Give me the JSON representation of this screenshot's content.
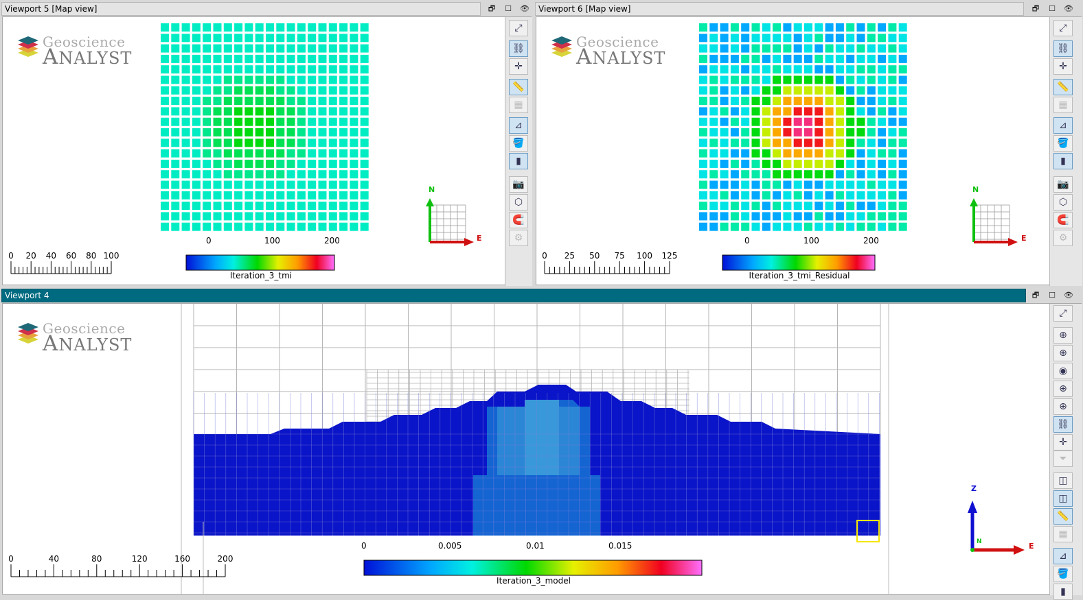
{
  "viewports": {
    "vp5": {
      "title": "Viewport 5 [Map view]"
    },
    "vp6": {
      "title": "Viewport 6 [Map view]"
    },
    "vp4": {
      "title": "Viewport 4"
    }
  },
  "logo": {
    "line1": "Geoscience",
    "line2_big": "A",
    "line2_small": "NALYST"
  },
  "controls": {
    "restore": "🗗",
    "maximize": "☐",
    "hide": "👁"
  },
  "colors": {
    "accent_title": "#006a80",
    "model_dark": "#0a14c8",
    "model_mid": "#1464d2",
    "model_light": "#2c86d6",
    "highlight": "#f5e600"
  },
  "scales": {
    "vp5": {
      "labels": [
        "0",
        "20",
        "40",
        "60",
        "80",
        "100"
      ]
    },
    "vp6": {
      "labels": [
        "0",
        "25",
        "50",
        "75",
        "100",
        "125"
      ]
    },
    "vp4": {
      "labels": [
        "0",
        "40",
        "80",
        "120",
        "160",
        "200"
      ]
    }
  },
  "grid_axes": {
    "vp5": [
      "0",
      "100",
      "200"
    ],
    "vp6": [
      "0",
      "100",
      "200"
    ]
  },
  "colorbars": {
    "vp5": {
      "title": "Iteration_3_tmi"
    },
    "vp6": {
      "title": "Iteration_3_tmi_Residual"
    },
    "vp4": {
      "title": "Iteration_3_model",
      "ticks": [
        "0",
        "0.005",
        "0.01",
        "0.015"
      ]
    }
  },
  "axes": {
    "north": "N",
    "east": "E",
    "z": "Z"
  },
  "chart_data": [
    {
      "type": "heatmap",
      "name": "Iteration_3_tmi",
      "rows": 20,
      "cols": 20,
      "x_ticks": [
        0,
        100,
        200
      ],
      "pattern": "low cyan background with green anomaly centered slightly left of middle"
    },
    {
      "type": "heatmap",
      "name": "Iteration_3_tmi_Residual",
      "rows": 20,
      "cols": 20,
      "x_ticks": [
        0,
        100,
        200
      ],
      "pattern": "cyan/blue background with concentric yellow-orange-red anomaly in center"
    },
    {
      "type": "heatmap",
      "name": "Iteration_3_model",
      "color_range": [
        0,
        0.019
      ],
      "ticks": [
        0,
        0.005,
        0.01,
        0.015
      ]
    }
  ],
  "toolbar_icons": {
    "map": [
      "zoom-extent-icon",
      "link-camera-icon",
      "crosshair-icon",
      "ruler-icon",
      "grid-icon",
      "axes-icon",
      "paint-bucket-icon",
      "colorbar-icon",
      "screenshot-icon",
      "clipping-box-icon",
      "magnet-icon",
      "settings-gear-icon"
    ],
    "section": [
      "zoom-extent-icon",
      "target-1-icon",
      "target-2-icon",
      "target-3-icon",
      "target-4-icon",
      "target-5-icon",
      "link-camera-icon",
      "crosshair-icon",
      "funnel-icon",
      "cube-1-icon",
      "cube-2-icon",
      "ruler-icon",
      "grid-icon",
      "axes-icon",
      "paint-bucket-icon",
      "colorbar-icon"
    ]
  }
}
